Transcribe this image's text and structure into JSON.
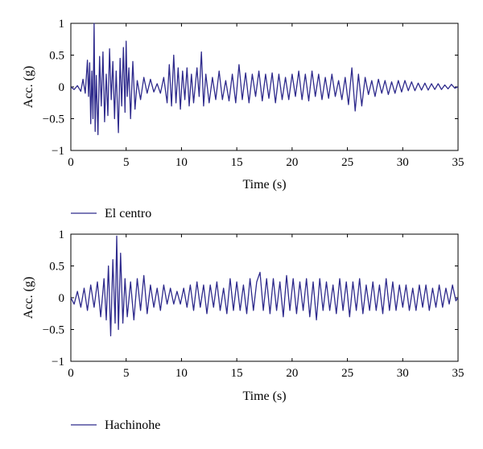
{
  "chart_data": [
    {
      "type": "line",
      "xlabel": "Time (s)",
      "ylabel": "Acc. (g)",
      "xlim": [
        0,
        35
      ],
      "ylim": [
        -1,
        1
      ],
      "xticks": [
        "0",
        "5",
        "10",
        "15",
        "20",
        "25",
        "30",
        "35"
      ],
      "yticks": [
        "1",
        "0.5",
        "0",
        "−0.5",
        "−1"
      ],
      "grid": false,
      "legend_position": "below",
      "line_color": "#2e2a8c",
      "series": [
        {
          "name": "El centro",
          "points": [
            [
              0,
              0
            ],
            [
              0.3,
              -0.04
            ],
            [
              0.6,
              0.02
            ],
            [
              0.9,
              -0.07
            ],
            [
              1.1,
              0.12
            ],
            [
              1.3,
              -0.1
            ],
            [
              1.5,
              0.42
            ],
            [
              1.6,
              -0.15
            ],
            [
              1.7,
              0.38
            ],
            [
              1.8,
              -0.58
            ],
            [
              1.9,
              0.25
            ],
            [
              2.0,
              -0.5
            ],
            [
              2.1,
              1.0
            ],
            [
              2.2,
              -0.7
            ],
            [
              2.3,
              0.18
            ],
            [
              2.45,
              -0.75
            ],
            [
              2.6,
              0.48
            ],
            [
              2.75,
              -0.3
            ],
            [
              2.9,
              0.55
            ],
            [
              3.05,
              -0.55
            ],
            [
              3.2,
              0.2
            ],
            [
              3.35,
              -0.45
            ],
            [
              3.5,
              0.6
            ],
            [
              3.65,
              -0.2
            ],
            [
              3.8,
              0.4
            ],
            [
              3.95,
              -0.5
            ],
            [
              4.1,
              0.25
            ],
            [
              4.3,
              -0.72
            ],
            [
              4.45,
              0.45
            ],
            [
              4.6,
              -0.3
            ],
            [
              4.75,
              0.62
            ],
            [
              4.9,
              -0.4
            ],
            [
              5.0,
              0.72
            ],
            [
              5.1,
              -0.15
            ],
            [
              5.25,
              0.3
            ],
            [
              5.4,
              -0.5
            ],
            [
              5.6,
              0.4
            ],
            [
              5.8,
              -0.35
            ],
            [
              6.0,
              0.1
            ],
            [
              6.3,
              -0.2
            ],
            [
              6.6,
              0.15
            ],
            [
              6.9,
              -0.1
            ],
            [
              7.2,
              0.12
            ],
            [
              7.5,
              -0.08
            ],
            [
              7.8,
              0.05
            ],
            [
              8.1,
              -0.1
            ],
            [
              8.4,
              0.15
            ],
            [
              8.7,
              -0.25
            ],
            [
              8.9,
              0.35
            ],
            [
              9.1,
              -0.3
            ],
            [
              9.3,
              0.5
            ],
            [
              9.5,
              -0.25
            ],
            [
              9.7,
              0.3
            ],
            [
              9.9,
              -0.35
            ],
            [
              10.1,
              0.25
            ],
            [
              10.3,
              -0.2
            ],
            [
              10.5,
              0.3
            ],
            [
              10.7,
              -0.3
            ],
            [
              10.9,
              0.2
            ],
            [
              11.1,
              -0.25
            ],
            [
              11.4,
              0.3
            ],
            [
              11.6,
              -0.15
            ],
            [
              11.8,
              0.55
            ],
            [
              12.0,
              -0.3
            ],
            [
              12.2,
              0.2
            ],
            [
              12.5,
              -0.25
            ],
            [
              12.8,
              0.15
            ],
            [
              13.1,
              -0.2
            ],
            [
              13.4,
              0.25
            ],
            [
              13.7,
              -0.2
            ],
            [
              14.0,
              0.1
            ],
            [
              14.3,
              -0.22
            ],
            [
              14.6,
              0.2
            ],
            [
              14.9,
              -0.25
            ],
            [
              15.2,
              0.35
            ],
            [
              15.5,
              -0.2
            ],
            [
              15.8,
              0.22
            ],
            [
              16.1,
              -0.25
            ],
            [
              16.4,
              0.2
            ],
            [
              16.7,
              -0.15
            ],
            [
              17.0,
              0.25
            ],
            [
              17.3,
              -0.22
            ],
            [
              17.6,
              0.2
            ],
            [
              17.9,
              -0.18
            ],
            [
              18.2,
              0.22
            ],
            [
              18.5,
              -0.25
            ],
            [
              18.8,
              0.2
            ],
            [
              19.1,
              -0.2
            ],
            [
              19.4,
              0.15
            ],
            [
              19.7,
              -0.2
            ],
            [
              20.0,
              0.2
            ],
            [
              20.3,
              -0.15
            ],
            [
              20.6,
              0.25
            ],
            [
              20.9,
              -0.2
            ],
            [
              21.2,
              0.2
            ],
            [
              21.5,
              -0.22
            ],
            [
              21.8,
              0.25
            ],
            [
              22.1,
              -0.15
            ],
            [
              22.4,
              0.2
            ],
            [
              22.7,
              -0.2
            ],
            [
              23.0,
              0.15
            ],
            [
              23.3,
              -0.18
            ],
            [
              23.6,
              0.2
            ],
            [
              23.9,
              -0.15
            ],
            [
              24.2,
              0.1
            ],
            [
              24.5,
              -0.2
            ],
            [
              24.8,
              0.15
            ],
            [
              25.1,
              -0.28
            ],
            [
              25.4,
              0.3
            ],
            [
              25.7,
              -0.38
            ],
            [
              26.0,
              0.2
            ],
            [
              26.3,
              -0.3
            ],
            [
              26.6,
              0.15
            ],
            [
              26.9,
              -0.12
            ],
            [
              27.2,
              0.1
            ],
            [
              27.5,
              -0.15
            ],
            [
              27.8,
              0.12
            ],
            [
              28.1,
              -0.1
            ],
            [
              28.4,
              0.1
            ],
            [
              28.7,
              -0.12
            ],
            [
              29.0,
              0.08
            ],
            [
              29.3,
              -0.1
            ],
            [
              29.6,
              0.1
            ],
            [
              29.9,
              -0.08
            ],
            [
              30.2,
              0.1
            ],
            [
              30.5,
              -0.06
            ],
            [
              30.8,
              0.08
            ],
            [
              31.1,
              -0.06
            ],
            [
              31.4,
              0.06
            ],
            [
              31.7,
              -0.05
            ],
            [
              32.0,
              0.06
            ],
            [
              32.3,
              -0.05
            ],
            [
              32.6,
              0.05
            ],
            [
              32.9,
              -0.04
            ],
            [
              33.2,
              0.05
            ],
            [
              33.5,
              -0.04
            ],
            [
              33.8,
              0.03
            ],
            [
              34.1,
              -0.03
            ],
            [
              34.4,
              0.04
            ],
            [
              34.7,
              -0.02
            ],
            [
              35.0,
              0
            ]
          ]
        }
      ]
    },
    {
      "type": "line",
      "xlabel": "Time (s)",
      "ylabel": "Acc. (g)",
      "xlim": [
        0,
        35
      ],
      "ylim": [
        -1,
        1
      ],
      "xticks": [
        "0",
        "5",
        "10",
        "15",
        "20",
        "25",
        "30",
        "35"
      ],
      "yticks": [
        "1",
        "0.5",
        "0",
        "−0.5",
        "−1"
      ],
      "grid": false,
      "legend_position": "below",
      "line_color": "#2e2a8c",
      "series": [
        {
          "name": "Hachinohe",
          "points": [
            [
              0,
              0
            ],
            [
              0.3,
              -0.1
            ],
            [
              0.6,
              0.1
            ],
            [
              0.9,
              -0.15
            ],
            [
              1.2,
              0.15
            ],
            [
              1.5,
              -0.2
            ],
            [
              1.8,
              0.2
            ],
            [
              2.1,
              -0.15
            ],
            [
              2.4,
              0.25
            ],
            [
              2.7,
              -0.3
            ],
            [
              3.0,
              0.3
            ],
            [
              3.2,
              -0.35
            ],
            [
              3.4,
              0.5
            ],
            [
              3.6,
              -0.6
            ],
            [
              3.8,
              0.6
            ],
            [
              4.0,
              -0.4
            ],
            [
              4.15,
              0.97
            ],
            [
              4.3,
              -0.5
            ],
            [
              4.5,
              0.7
            ],
            [
              4.7,
              -0.4
            ],
            [
              4.9,
              0.3
            ],
            [
              5.1,
              -0.3
            ],
            [
              5.4,
              0.25
            ],
            [
              5.7,
              -0.35
            ],
            [
              6.0,
              0.3
            ],
            [
              6.3,
              -0.2
            ],
            [
              6.6,
              0.35
            ],
            [
              6.9,
              -0.25
            ],
            [
              7.2,
              0.2
            ],
            [
              7.5,
              -0.15
            ],
            [
              7.8,
              0.15
            ],
            [
              8.1,
              -0.2
            ],
            [
              8.4,
              0.2
            ],
            [
              8.7,
              -0.1
            ],
            [
              9.0,
              0.15
            ],
            [
              9.3,
              -0.1
            ],
            [
              9.6,
              0.1
            ],
            [
              9.9,
              -0.1
            ],
            [
              10.2,
              0.15
            ],
            [
              10.5,
              -0.15
            ],
            [
              10.8,
              0.2
            ],
            [
              11.1,
              -0.2
            ],
            [
              11.4,
              0.25
            ],
            [
              11.7,
              -0.15
            ],
            [
              12.0,
              0.2
            ],
            [
              12.3,
              -0.25
            ],
            [
              12.6,
              0.2
            ],
            [
              12.9,
              -0.15
            ],
            [
              13.2,
              0.25
            ],
            [
              13.5,
              -0.2
            ],
            [
              13.8,
              0.15
            ],
            [
              14.1,
              -0.25
            ],
            [
              14.4,
              0.3
            ],
            [
              14.7,
              -0.2
            ],
            [
              15.0,
              0.25
            ],
            [
              15.3,
              -0.2
            ],
            [
              15.6,
              0.2
            ],
            [
              15.9,
              -0.25
            ],
            [
              16.2,
              0.3
            ],
            [
              16.5,
              -0.2
            ],
            [
              16.8,
              0.25
            ],
            [
              17.1,
              0.4
            ],
            [
              17.4,
              -0.2
            ],
            [
              17.7,
              0.3
            ],
            [
              18.0,
              -0.25
            ],
            [
              18.3,
              0.3
            ],
            [
              18.6,
              -0.2
            ],
            [
              18.9,
              0.25
            ],
            [
              19.2,
              -0.3
            ],
            [
              19.5,
              0.35
            ],
            [
              19.8,
              -0.2
            ],
            [
              20.1,
              0.3
            ],
            [
              20.4,
              -0.25
            ],
            [
              20.7,
              0.25
            ],
            [
              21.0,
              -0.2
            ],
            [
              21.3,
              0.3
            ],
            [
              21.6,
              -0.3
            ],
            [
              21.9,
              0.25
            ],
            [
              22.2,
              -0.35
            ],
            [
              22.5,
              0.3
            ],
            [
              22.8,
              -0.2
            ],
            [
              23.1,
              0.25
            ],
            [
              23.4,
              -0.2
            ],
            [
              23.7,
              0.2
            ],
            [
              24.0,
              -0.25
            ],
            [
              24.3,
              0.3
            ],
            [
              24.6,
              -0.2
            ],
            [
              24.9,
              0.25
            ],
            [
              25.2,
              -0.3
            ],
            [
              25.5,
              0.25
            ],
            [
              25.8,
              -0.2
            ],
            [
              26.1,
              0.3
            ],
            [
              26.4,
              -0.25
            ],
            [
              26.7,
              0.2
            ],
            [
              27.0,
              -0.2
            ],
            [
              27.3,
              0.25
            ],
            [
              27.6,
              -0.2
            ],
            [
              27.9,
              0.2
            ],
            [
              28.2,
              -0.25
            ],
            [
              28.5,
              0.3
            ],
            [
              28.8,
              -0.2
            ],
            [
              29.1,
              0.25
            ],
            [
              29.4,
              -0.2
            ],
            [
              29.7,
              0.2
            ],
            [
              30.0,
              -0.15
            ],
            [
              30.3,
              0.2
            ],
            [
              30.6,
              -0.2
            ],
            [
              30.9,
              0.15
            ],
            [
              31.2,
              -0.2
            ],
            [
              31.5,
              0.2
            ],
            [
              31.8,
              -0.15
            ],
            [
              32.1,
              0.2
            ],
            [
              32.4,
              -0.2
            ],
            [
              32.7,
              0.15
            ],
            [
              33.0,
              -0.15
            ],
            [
              33.3,
              0.2
            ],
            [
              33.6,
              -0.15
            ],
            [
              33.9,
              0.15
            ],
            [
              34.2,
              -0.1
            ],
            [
              34.5,
              0.2
            ],
            [
              34.8,
              -0.05
            ],
            [
              35.0,
              0
            ]
          ]
        }
      ]
    }
  ]
}
